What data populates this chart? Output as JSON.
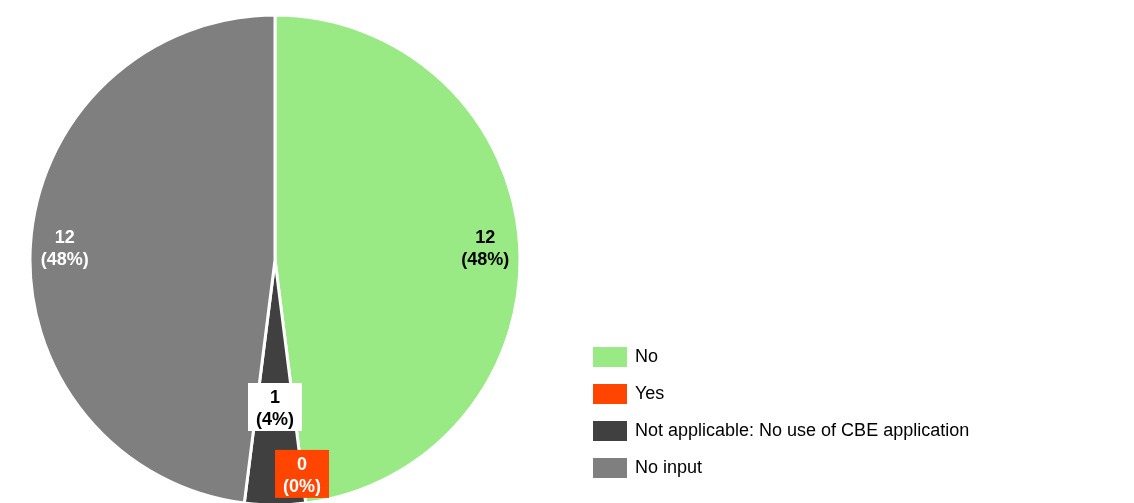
{
  "chart_data": {
    "type": "pie",
    "categories": [
      "No",
      "Yes",
      "Not applicable: No use of CBE application",
      "No input"
    ],
    "values": [
      12,
      0,
      1,
      12
    ],
    "colors": [
      "#99ea85",
      "#ff4500",
      "#404040",
      "#7f7f7f"
    ],
    "value_labels": [
      "12\n(48%)",
      "0\n(0%)",
      "1\n(4%)",
      "12\n(48%)"
    ],
    "legend": "bottom right"
  }
}
